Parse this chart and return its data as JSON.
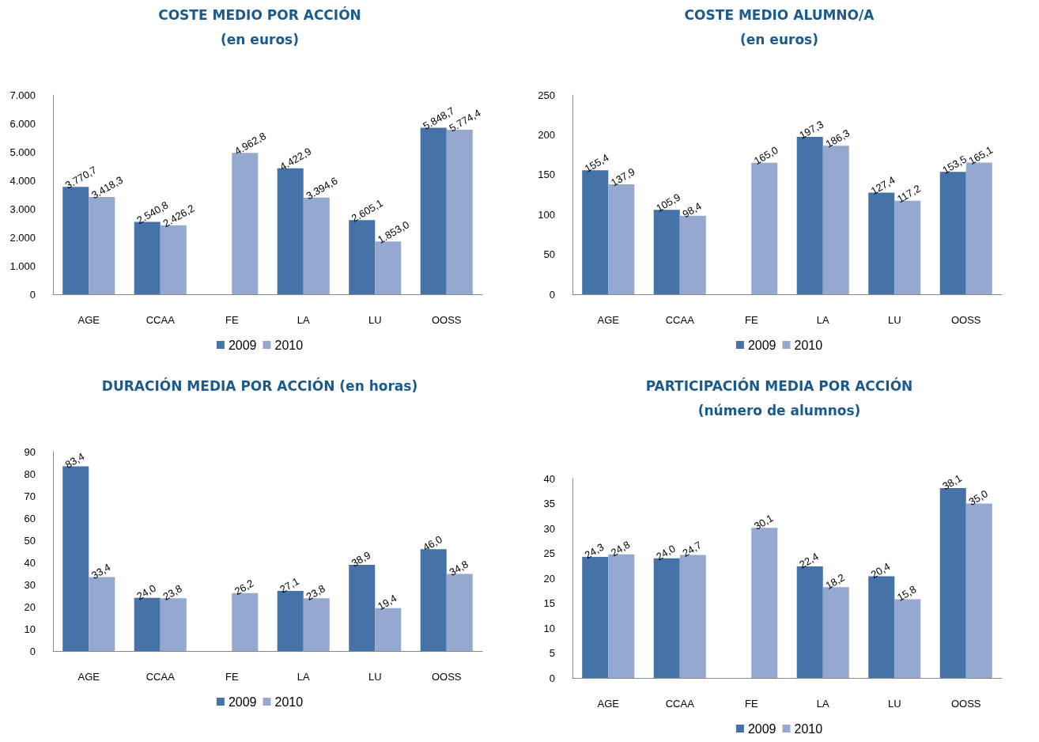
{
  "chart_data": [
    {
      "type": "bar",
      "title": "COSTE MEDIO POR ACCIÓN",
      "subtitle": "(en euros)",
      "categories": [
        "AGE",
        "CCAA",
        "FE",
        "LA",
        "LU",
        "OOSS"
      ],
      "series": [
        {
          "name": "2009",
          "color": "#4572a7",
          "values": [
            3770.7,
            2540.8,
            null,
            4422.9,
            2605.1,
            5848.7
          ],
          "value_labels": [
            "3.770,7",
            "2.540,8",
            null,
            "4.422,9",
            "2.605,1",
            "5.848,7"
          ]
        },
        {
          "name": "2010",
          "color": "#95a9d0",
          "values": [
            3418.3,
            2426.2,
            4962.8,
            3394.6,
            1853.0,
            5774.4
          ],
          "value_labels": [
            "3.418,3",
            "2.426,2",
            "4.962,8",
            "3.394,6",
            "1.853,0",
            "5.774,4"
          ]
        }
      ],
      "ylim": [
        0,
        7000
      ],
      "yticks": [
        0,
        {
          "value": 1000,
          "label": "1.000"
        },
        {
          "value": 2000,
          "label": "2.000"
        },
        {
          "value": 3000,
          "label": "3.000"
        },
        {
          "value": 4000,
          "label": "4.000"
        },
        {
          "value": 5000,
          "label": "5.000"
        },
        {
          "value": 6000,
          "label": "6.000"
        },
        {
          "value": 7000,
          "label": "7.000"
        }
      ],
      "grid": false,
      "legend": "bottom"
    },
    {
      "type": "bar",
      "title": "COSTE MEDIO ALUMNO/A",
      "subtitle": "(en euros)",
      "categories": [
        "AGE",
        "CCAA",
        "FE",
        "LA",
        "LU",
        "OOSS"
      ],
      "series": [
        {
          "name": "2009",
          "color": "#4572a7",
          "values": [
            155.4,
            105.9,
            null,
            197.3,
            127.4,
            153.5
          ],
          "value_labels": [
            "155,4",
            "105,9",
            null,
            "197,3",
            "127,4",
            "153,5"
          ]
        },
        {
          "name": "2010",
          "color": "#95a9d0",
          "values": [
            137.9,
            98.4,
            165.0,
            186.3,
            117.2,
            165.1
          ],
          "value_labels": [
            "137,9",
            "98,4",
            "165,0",
            "186,3",
            "117,2",
            "165,1"
          ]
        }
      ],
      "ylim": [
        0,
        250
      ],
      "yticks": [
        0,
        50,
        100,
        150,
        200,
        250
      ],
      "grid": false,
      "legend": "bottom"
    },
    {
      "type": "bar",
      "title": "DURACIÓN MEDIA POR ACCIÓN (en horas)",
      "categories": [
        "AGE",
        "CCAA",
        "FE",
        "LA",
        "LU",
        "OOSS"
      ],
      "series": [
        {
          "name": "2009",
          "color": "#4572a7",
          "values": [
            83.4,
            24.0,
            null,
            27.1,
            38.9,
            46.0
          ],
          "value_labels": [
            "83,4",
            "24,0",
            null,
            "27,1",
            "38,9",
            "46,0"
          ]
        },
        {
          "name": "2010",
          "color": "#95a9d0",
          "values": [
            33.4,
            23.8,
            26.2,
            23.8,
            19.4,
            34.8
          ],
          "value_labels": [
            "33,4",
            "23,8",
            "26,2",
            "23,8",
            "19,4",
            "34,8"
          ]
        }
      ],
      "ylim": [
        0,
        90
      ],
      "yticks": [
        0,
        10,
        20,
        30,
        40,
        50,
        60,
        70,
        80,
        90
      ],
      "grid": false,
      "legend": "bottom"
    },
    {
      "type": "bar",
      "title": "PARTICIPACIÓN MEDIA POR ACCIÓN",
      "subtitle": "(número de alumnos)",
      "categories": [
        "AGE",
        "CCAA",
        "FE",
        "LA",
        "LU",
        "OOSS"
      ],
      "series": [
        {
          "name": "2009",
          "color": "#4572a7",
          "values": [
            24.3,
            24.0,
            null,
            22.4,
            20.4,
            38.1
          ],
          "value_labels": [
            "24,3",
            "24,0",
            null,
            "22,4",
            "20,4",
            "38,1"
          ]
        },
        {
          "name": "2010",
          "color": "#95a9d0",
          "values": [
            24.8,
            24.7,
            30.1,
            18.2,
            15.8,
            35.0
          ],
          "value_labels": [
            "24,8",
            "24,7",
            "30,1",
            "18,2",
            "15,8",
            "35,0"
          ]
        }
      ],
      "ylim": [
        0,
        40
      ],
      "yticks": [
        0,
        5,
        10,
        15,
        20,
        25,
        30,
        35,
        40
      ],
      "grid": false,
      "legend": "bottom"
    }
  ]
}
